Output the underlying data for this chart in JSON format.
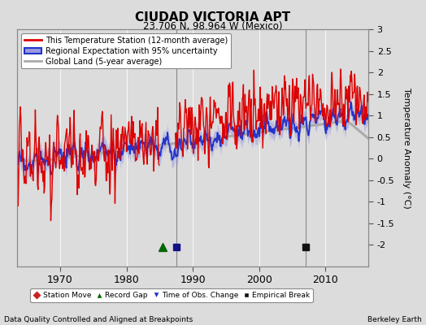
{
  "title": "CIUDAD VICTORIA APT",
  "subtitle": "23.706 N, 98.964 W (Mexico)",
  "ylabel": "Temperature Anomaly (°C)",
  "footer_left": "Data Quality Controlled and Aligned at Breakpoints",
  "footer_right": "Berkeley Earth",
  "ylim": [
    -2.5,
    3.0
  ],
  "yticks": [
    -2.0,
    -1.5,
    -1.0,
    -0.5,
    0.0,
    0.5,
    1.0,
    1.5,
    2.0,
    2.5,
    3.0
  ],
  "yticklabels": [
    "-2",
    "-1.5",
    "-1",
    "-0.5",
    "0",
    "0.5",
    "1",
    "1.5",
    "2",
    "2.5",
    "3"
  ],
  "xlim": [
    1963.5,
    2016.5
  ],
  "xticks": [
    1970,
    1980,
    1990,
    2000,
    2010
  ],
  "bg_color": "#dcdcdc",
  "plot_bg_color": "#dcdcdc",
  "line_color_station": "#dd0000",
  "line_color_regional": "#2233cc",
  "fill_color_regional": "#9999dd",
  "line_color_global": "#aaaaaa",
  "legend_items": [
    "This Temperature Station (12-month average)",
    "Regional Expectation with 95% uncertainty",
    "Global Land (5-year average)"
  ],
  "markers": {
    "record_gap": {
      "year": 1985.5,
      "color": "#006600",
      "marker": "^",
      "size": 7
    },
    "time_of_obs": {
      "year": 1987.5,
      "color": "#111188",
      "marker": "s",
      "size": 6
    },
    "empirical_break": {
      "year": 2007.0,
      "color": "#111111",
      "marker": "s",
      "size": 6
    }
  },
  "vlines": [
    {
      "year": 1987.5,
      "color": "#888888",
      "linestyle": "-",
      "lw": 0.8
    },
    {
      "year": 2007.0,
      "color": "#888888",
      "linestyle": "-",
      "lw": 0.8
    }
  ],
  "gap_start": 1985.0,
  "gap_end": 1987.3,
  "seed": 17
}
